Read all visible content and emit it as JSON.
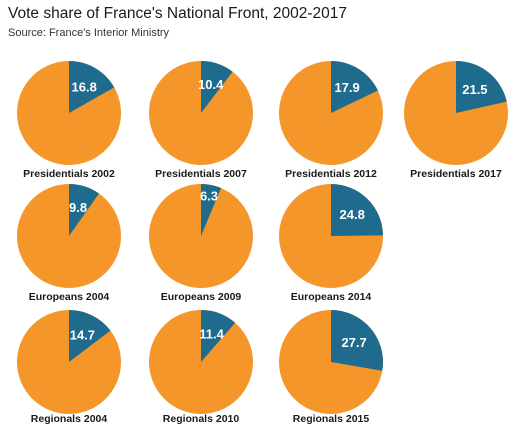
{
  "chart_data": {
    "type": "pie",
    "title": "Vote share of France's National Front, 2002-2017",
    "subtitle": "Source: France's Interior Ministry",
    "colors": {
      "front": "#1f6b8e",
      "other": "#f4962a",
      "label_text": "#ffffff"
    },
    "pies": [
      {
        "label": "Presidentials 2002",
        "value": 16.8
      },
      {
        "label": "Presidentials 2007",
        "value": 10.4
      },
      {
        "label": "Presidentials 2012",
        "value": 17.9
      },
      {
        "label": "Presidentials 2017",
        "value": 21.5
      },
      {
        "label": "Europeans 2004",
        "value": 9.8
      },
      {
        "label": "Europeans 2009",
        "value": 6.3
      },
      {
        "label": "Europeans 2014",
        "value": 24.8
      },
      {
        "label": "Regionals 2004",
        "value": 14.7
      },
      {
        "label": "Regionals 2010",
        "value": 11.4
      },
      {
        "label": "Regionals 2015",
        "value": 27.7
      }
    ]
  }
}
